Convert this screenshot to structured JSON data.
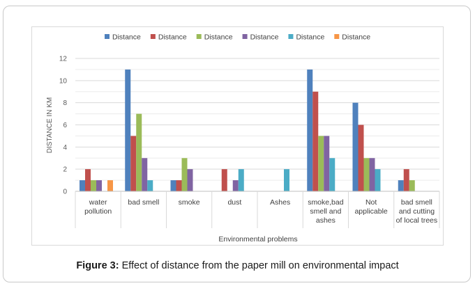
{
  "caption": {
    "label": "Figure 3:",
    "text": " Effect of distance from the paper mill on environmental impact"
  },
  "chart_data": {
    "type": "bar",
    "title": "",
    "xlabel": "Environmental problems",
    "ylabel": "DISTANCE IN KM",
    "ylim": [
      0,
      12
    ],
    "yticks": [
      0,
      2,
      4,
      6,
      8,
      10,
      12
    ],
    "grid": true,
    "legend_position": "top",
    "categories": [
      [
        "water",
        "pollution"
      ],
      [
        "bad smell"
      ],
      [
        "smoke"
      ],
      [
        "dust"
      ],
      [
        "Ashes"
      ],
      [
        "smoke,bad",
        "smell and",
        "ashes"
      ],
      [
        "Not",
        "applicable"
      ],
      [
        "bad smell",
        "and cutting",
        "of local trees"
      ]
    ],
    "series": [
      {
        "name": "Distance",
        "color": "#4f81bd",
        "values": [
          1,
          11,
          1,
          0,
          0,
          11,
          8,
          1
        ]
      },
      {
        "name": "Distance",
        "color": "#c0504d",
        "values": [
          2,
          5,
          1,
          2,
          0,
          9,
          6,
          2
        ]
      },
      {
        "name": "Distance",
        "color": "#9bbb59",
        "values": [
          1,
          7,
          3,
          0,
          0,
          5,
          3,
          1
        ]
      },
      {
        "name": "Distance",
        "color": "#8064a2",
        "values": [
          1,
          3,
          2,
          1,
          0,
          5,
          3,
          0
        ]
      },
      {
        "name": "Distance",
        "color": "#4bacc6",
        "values": [
          0,
          1,
          0,
          2,
          2,
          3,
          2,
          0
        ]
      },
      {
        "name": "Distance",
        "color": "#f79646",
        "values": [
          1,
          0,
          0,
          0,
          0,
          0,
          0,
          0
        ]
      }
    ]
  }
}
